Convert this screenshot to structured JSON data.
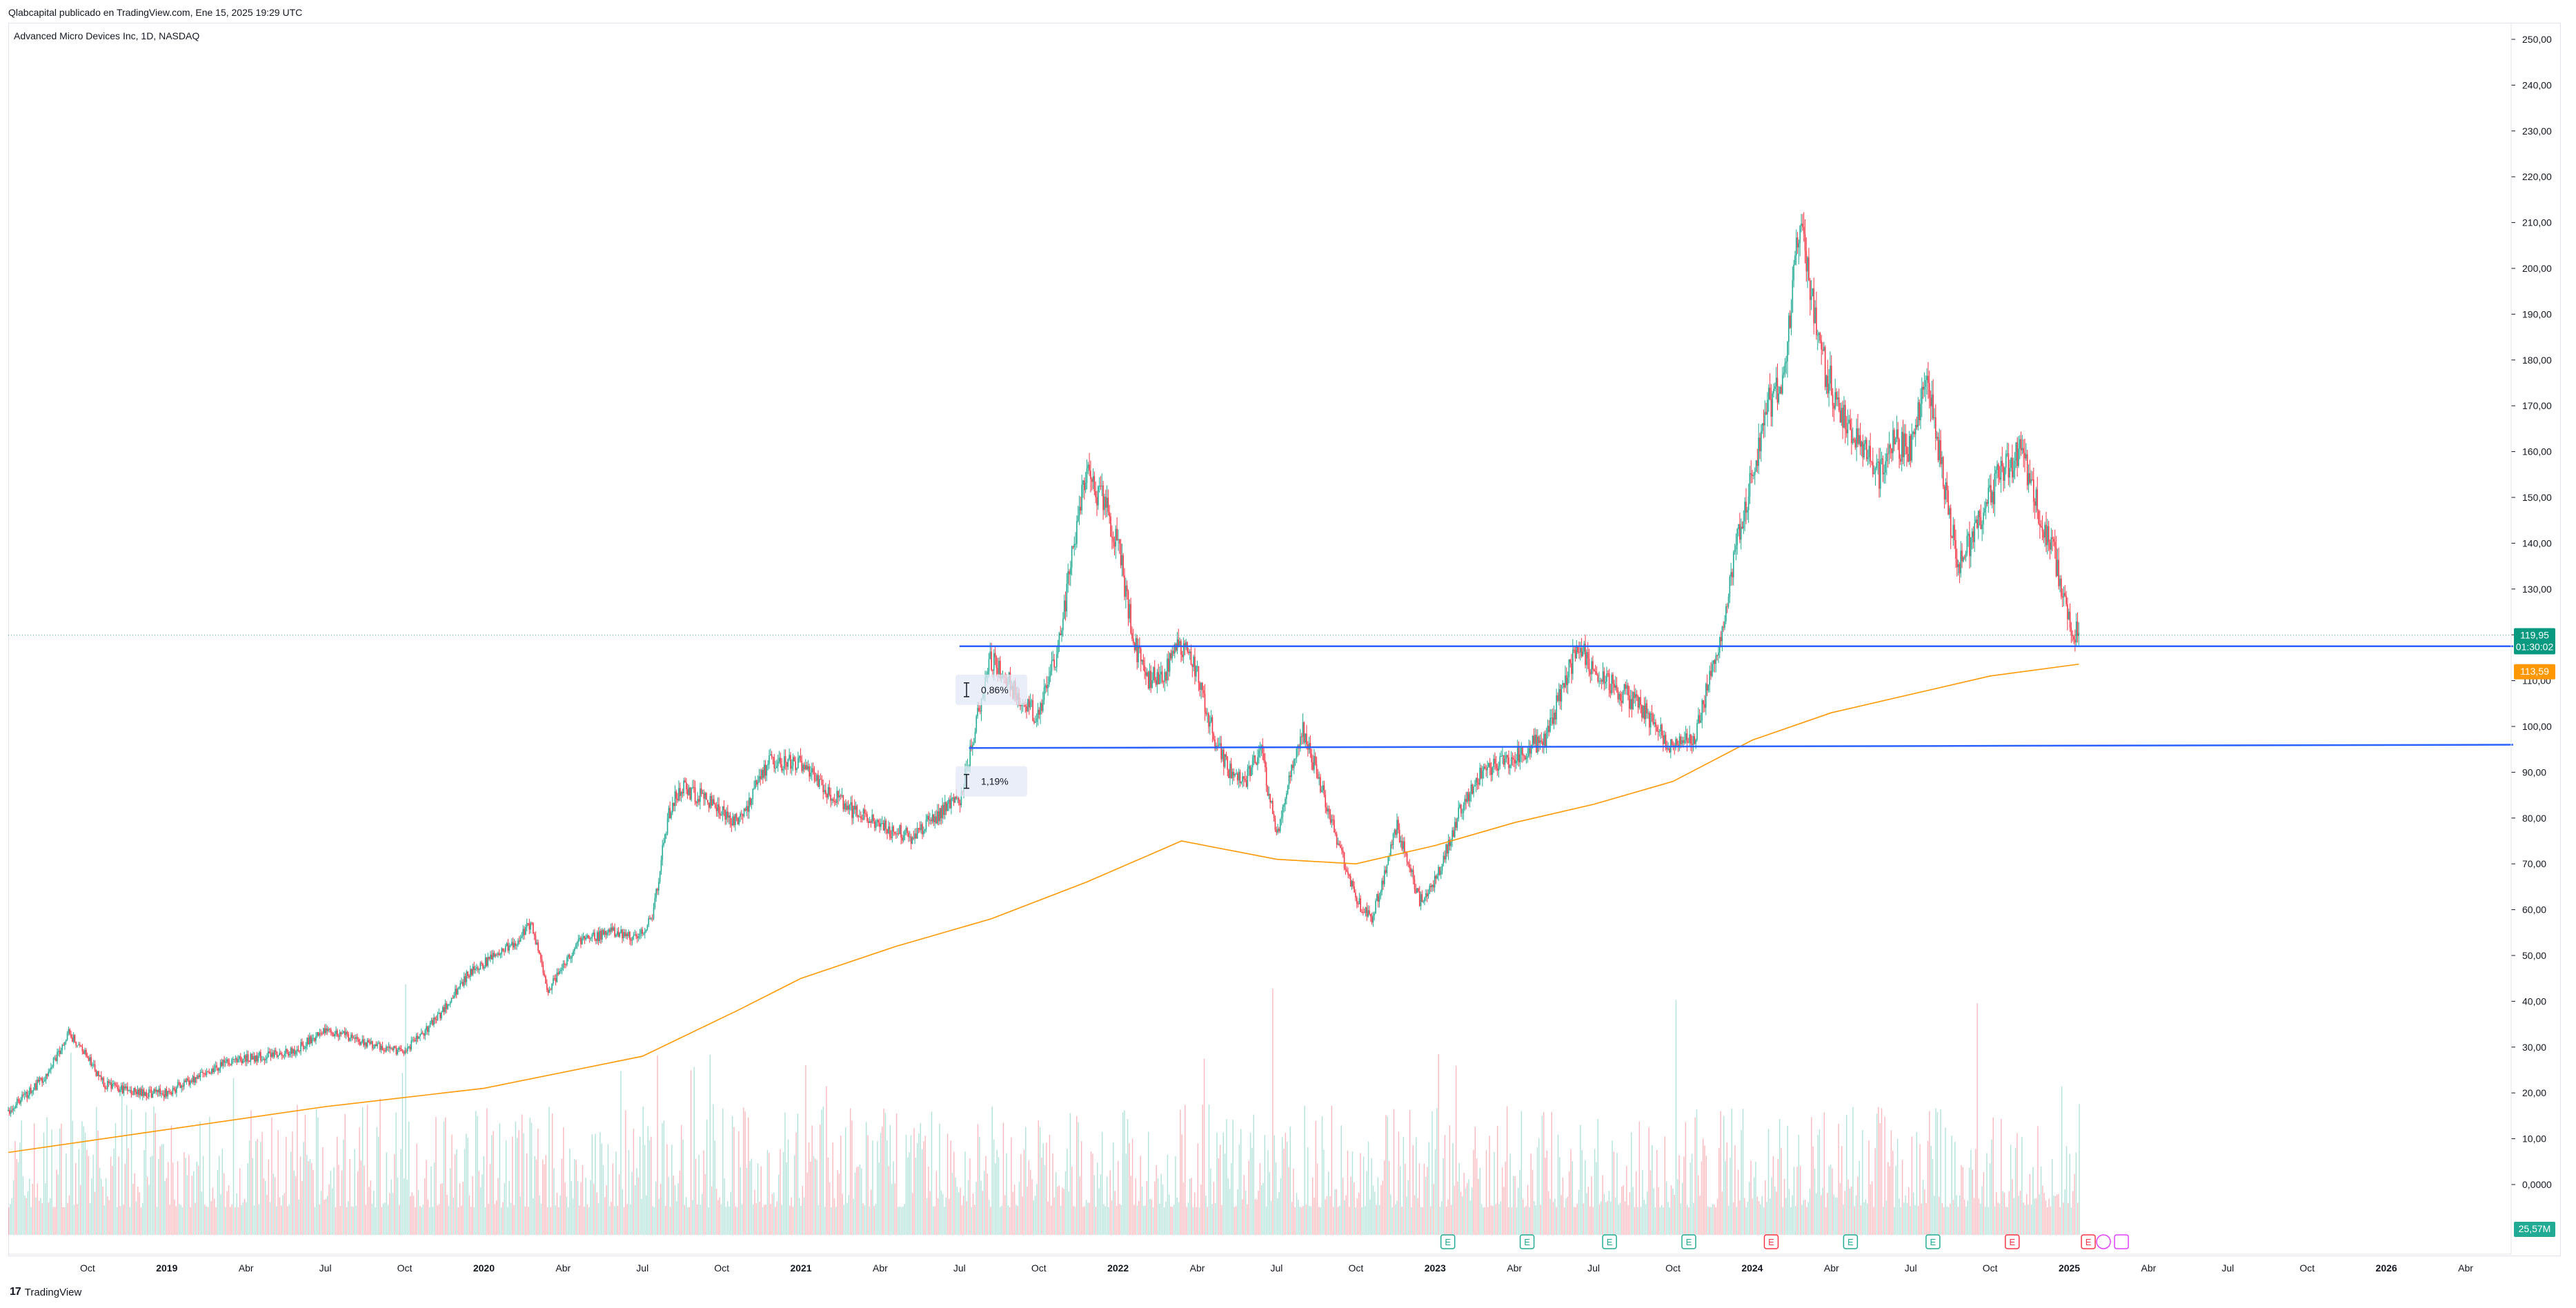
{
  "header": {
    "credit": "Qlabcapital publicado en TradingView.com, Ene 15, 2025 19:29 UTC",
    "symbol": "Advanced Micro Devices Inc, 1D, NASDAQ"
  },
  "footer": {
    "logo_text": "TradingView"
  },
  "price_labels": {
    "last_price": "119,95",
    "countdown": "01:30:02",
    "ma_value": "113,59",
    "volume": "25,57M"
  },
  "measure_labels": {
    "upper": "0,86%",
    "lower": "1,19%"
  },
  "colors": {
    "up": "#22ab94",
    "down": "#f23645",
    "ma": "#ff9800",
    "level": "#2962ff",
    "price_tag": "#089981",
    "volume_tag": "#22ab94"
  },
  "chart_data": {
    "type": "candlestick",
    "symbol": "Advanced Micro Devices Inc, 1D, NASDAQ",
    "ylim": [
      -10,
      260
    ],
    "y_ticks": [
      "250,00",
      "240,00",
      "230,00",
      "220,00",
      "210,00",
      "200,00",
      "190,00",
      "180,00",
      "170,00",
      "160,00",
      "150,00",
      "140,00",
      "130,00",
      "120,00",
      "110,00",
      "100,00",
      "90,00",
      "80,00",
      "70,00",
      "60,00",
      "50,00",
      "40,00",
      "30,00",
      "20,00",
      "10,00",
      "0,0000"
    ],
    "x_ticks": [
      {
        "label": "Oct",
        "t": 2018.75,
        "bold": false
      },
      {
        "label": "2019",
        "t": 2019.0,
        "bold": true
      },
      {
        "label": "Abr",
        "t": 2019.25,
        "bold": false
      },
      {
        "label": "Jul",
        "t": 2019.5,
        "bold": false
      },
      {
        "label": "Oct",
        "t": 2019.75,
        "bold": false
      },
      {
        "label": "2020",
        "t": 2020.0,
        "bold": true
      },
      {
        "label": "Abr",
        "t": 2020.25,
        "bold": false
      },
      {
        "label": "Jul",
        "t": 2020.5,
        "bold": false
      },
      {
        "label": "Oct",
        "t": 2020.75,
        "bold": false
      },
      {
        "label": "2021",
        "t": 2021.0,
        "bold": true
      },
      {
        "label": "Abr",
        "t": 2021.25,
        "bold": false
      },
      {
        "label": "Jul",
        "t": 2021.5,
        "bold": false
      },
      {
        "label": "Oct",
        "t": 2021.75,
        "bold": false
      },
      {
        "label": "2022",
        "t": 2022.0,
        "bold": true
      },
      {
        "label": "Abr",
        "t": 2022.25,
        "bold": false
      },
      {
        "label": "Jul",
        "t": 2022.5,
        "bold": false
      },
      {
        "label": "Oct",
        "t": 2022.75,
        "bold": false
      },
      {
        "label": "2023",
        "t": 2023.0,
        "bold": true
      },
      {
        "label": "Abr",
        "t": 2023.25,
        "bold": false
      },
      {
        "label": "Jul",
        "t": 2023.5,
        "bold": false
      },
      {
        "label": "Oct",
        "t": 2023.75,
        "bold": false
      },
      {
        "label": "2024",
        "t": 2024.0,
        "bold": true
      },
      {
        "label": "Abr",
        "t": 2024.25,
        "bold": false
      },
      {
        "label": "Jul",
        "t": 2024.5,
        "bold": false
      },
      {
        "label": "Oct",
        "t": 2024.75,
        "bold": false
      },
      {
        "label": "2025",
        "t": 2025.0,
        "bold": true
      },
      {
        "label": "Abr",
        "t": 2025.25,
        "bold": false
      },
      {
        "label": "Jul",
        "t": 2025.5,
        "bold": false
      },
      {
        "label": "Oct",
        "t": 2025.75,
        "bold": false
      },
      {
        "label": "2026",
        "t": 2026.0,
        "bold": true
      },
      {
        "label": "Abr",
        "t": 2026.25,
        "bold": false
      }
    ],
    "price_path": [
      [
        2018.5,
        16
      ],
      [
        2018.55,
        19
      ],
      [
        2018.62,
        24
      ],
      [
        2018.69,
        33
      ],
      [
        2018.73,
        30
      ],
      [
        2018.8,
        22
      ],
      [
        2018.9,
        20
      ],
      [
        2019.0,
        20
      ],
      [
        2019.08,
        23
      ],
      [
        2019.2,
        27
      ],
      [
        2019.3,
        28
      ],
      [
        2019.4,
        29
      ],
      [
        2019.5,
        34
      ],
      [
        2019.62,
        31
      ],
      [
        2019.75,
        29
      ],
      [
        2019.85,
        36
      ],
      [
        2019.95,
        46
      ],
      [
        2020.1,
        53
      ],
      [
        2020.15,
        57
      ],
      [
        2020.2,
        42
      ],
      [
        2020.3,
        53
      ],
      [
        2020.4,
        55
      ],
      [
        2020.48,
        54
      ],
      [
        2020.53,
        58
      ],
      [
        2020.58,
        80
      ],
      [
        2020.62,
        87
      ],
      [
        2020.7,
        84
      ],
      [
        2020.8,
        79
      ],
      [
        2020.9,
        92
      ],
      [
        2021.0,
        92
      ],
      [
        2021.05,
        88
      ],
      [
        2021.15,
        82
      ],
      [
        2021.25,
        78
      ],
      [
        2021.35,
        76
      ],
      [
        2021.45,
        82
      ],
      [
        2021.5,
        84
      ],
      [
        2021.57,
        106
      ],
      [
        2021.6,
        115
      ],
      [
        2021.67,
        108
      ],
      [
        2021.75,
        102
      ],
      [
        2021.82,
        120
      ],
      [
        2021.87,
        145
      ],
      [
        2021.9,
        155
      ],
      [
        2021.95,
        150
      ],
      [
        2022.0,
        140
      ],
      [
        2022.05,
        118
      ],
      [
        2022.1,
        110
      ],
      [
        2022.15,
        112
      ],
      [
        2022.2,
        118
      ],
      [
        2022.25,
        112
      ],
      [
        2022.3,
        98
      ],
      [
        2022.35,
        90
      ],
      [
        2022.4,
        88
      ],
      [
        2022.45,
        95
      ],
      [
        2022.5,
        76
      ],
      [
        2022.58,
        100
      ],
      [
        2022.65,
        85
      ],
      [
        2022.75,
        62
      ],
      [
        2022.8,
        58
      ],
      [
        2022.88,
        78
      ],
      [
        2022.95,
        62
      ],
      [
        2023.0,
        66
      ],
      [
        2023.08,
        82
      ],
      [
        2023.15,
        90
      ],
      [
        2023.25,
        93
      ],
      [
        2023.35,
        98
      ],
      [
        2023.45,
        118
      ],
      [
        2023.5,
        112
      ],
      [
        2023.58,
        108
      ],
      [
        2023.65,
        104
      ],
      [
        2023.75,
        95
      ],
      [
        2023.82,
        98
      ],
      [
        2023.9,
        120
      ],
      [
        2023.95,
        140
      ],
      [
        2024.0,
        155
      ],
      [
        2024.05,
        170
      ],
      [
        2024.1,
        175
      ],
      [
        2024.15,
        210
      ],
      [
        2024.22,
        180
      ],
      [
        2024.3,
        165
      ],
      [
        2024.4,
        155
      ],
      [
        2024.45,
        162
      ],
      [
        2024.5,
        160
      ],
      [
        2024.55,
        178
      ],
      [
        2024.6,
        155
      ],
      [
        2024.65,
        135
      ],
      [
        2024.72,
        145
      ],
      [
        2024.78,
        155
      ],
      [
        2024.85,
        160
      ],
      [
        2024.9,
        148
      ],
      [
        2024.95,
        138
      ],
      [
        2025.0,
        122
      ],
      [
        2025.03,
        119.95
      ]
    ],
    "overlays": {
      "moving_average": [
        [
          2018.5,
          7
        ],
        [
          2019.0,
          12
        ],
        [
          2019.5,
          17
        ],
        [
          2020.0,
          21
        ],
        [
          2020.5,
          28
        ],
        [
          2020.8,
          38
        ],
        [
          2021.0,
          45
        ],
        [
          2021.3,
          52
        ],
        [
          2021.6,
          58
        ],
        [
          2021.9,
          66
        ],
        [
          2022.2,
          75
        ],
        [
          2022.5,
          71
        ],
        [
          2022.75,
          70
        ],
        [
          2023.0,
          74
        ],
        [
          2023.25,
          79
        ],
        [
          2023.5,
          83
        ],
        [
          2023.75,
          88
        ],
        [
          2024.0,
          97
        ],
        [
          2024.25,
          103
        ],
        [
          2024.5,
          107
        ],
        [
          2024.75,
          111
        ],
        [
          2025.03,
          113.59
        ]
      ],
      "horizontal_levels": [
        {
          "t0": 2021.5,
          "t1": 2026.4,
          "y0": 117.5,
          "y1": 117.5
        },
        {
          "t0": 2021.53,
          "t1": 2026.4,
          "y0": 95.3,
          "y1": 96.0
        }
      ],
      "measure_annotations": [
        {
          "label": "0,86%",
          "t": 2021.52,
          "y": 108
        },
        {
          "label": "1,19%",
          "t": 2021.52,
          "y": 88
        }
      ],
      "earnings_markers": [
        {
          "t": 2023.04,
          "label": "E",
          "kind": "up"
        },
        {
          "t": 2023.29,
          "label": "E",
          "kind": "up"
        },
        {
          "t": 2023.55,
          "label": "E",
          "kind": "up"
        },
        {
          "t": 2023.8,
          "label": "E",
          "kind": "up"
        },
        {
          "t": 2024.06,
          "label": "E",
          "kind": "down"
        },
        {
          "t": 2024.31,
          "label": "E",
          "kind": "up"
        },
        {
          "t": 2024.57,
          "label": "E",
          "kind": "up"
        },
        {
          "t": 2024.82,
          "label": "E",
          "kind": "down"
        },
        {
          "t": 2025.06,
          "label": "E",
          "kind": "down"
        }
      ]
    },
    "last_price": 119.95,
    "ma_last": 113.59
  }
}
